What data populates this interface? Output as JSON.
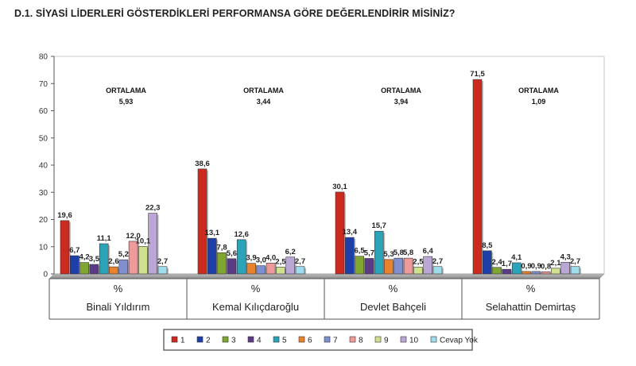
{
  "title": "D.1. SİYASİ LİDERLERİ GÖSTERDİKLERİ PERFORMANSA GÖRE DEĞERLENDİRİR MİSİNİZ?",
  "colors": [
    "#cc2a1f",
    "#1f3fa8",
    "#7fa631",
    "#5b3b86",
    "#2ba3b8",
    "#e8822d",
    "#7f8fd0",
    "#ef9a9a",
    "#cfe08f",
    "#bba7d6",
    "#9fdcec"
  ],
  "chart_data": {
    "type": "bar",
    "title": "D.1. SİYASİ LİDERLERİ GÖSTERDİKLERİ PERFORMANSA GÖRE DEĞERLENDİRİR MİSİNİZ?",
    "ylim": [
      0,
      80
    ],
    "yticks": [
      0,
      10,
      20,
      30,
      40,
      50,
      60,
      70,
      80
    ],
    "grid": false,
    "legend_position": "bottom",
    "unit_label": "%",
    "categories": [
      "Binali Yıldırım",
      "Kemal Kılıçdaroğlu",
      "Devlet Bahçeli",
      "Selahattin Demirtaş"
    ],
    "series": [
      {
        "name": "1",
        "values": [
          19.6,
          38.6,
          30.1,
          71.5
        ],
        "labels": [
          "19,6",
          "38,6",
          "30,1",
          "71,5"
        ]
      },
      {
        "name": "2",
        "values": [
          6.7,
          13.1,
          13.4,
          8.5
        ],
        "labels": [
          "6,7",
          "13,1",
          "13,4",
          "8,5"
        ]
      },
      {
        "name": "3",
        "values": [
          4.2,
          7.8,
          6.5,
          2.4
        ],
        "labels": [
          "4,2",
          "7,8",
          "6,5",
          "2,4"
        ]
      },
      {
        "name": "4",
        "values": [
          3.5,
          5.6,
          5.7,
          1.7
        ],
        "labels": [
          "3,5",
          "5,6",
          "5,7",
          "1,7"
        ]
      },
      {
        "name": "5",
        "values": [
          11.1,
          12.6,
          15.7,
          4.1
        ],
        "labels": [
          "11,1",
          "12,6",
          "15,7",
          "4,1"
        ]
      },
      {
        "name": "6",
        "values": [
          2.6,
          3.9,
          5.3,
          0.9
        ],
        "labels": [
          "2,6",
          "3,9",
          "5,3",
          "0,9"
        ]
      },
      {
        "name": "7",
        "values": [
          5.2,
          3.0,
          5.8,
          0.9
        ],
        "labels": [
          "5,2",
          "3,0",
          "5,8",
          "0,9"
        ]
      },
      {
        "name": "8",
        "values": [
          12.0,
          4.0,
          5.8,
          0.8
        ],
        "labels": [
          "12,0",
          "4,0",
          "5,8",
          "0,8"
        ]
      },
      {
        "name": "9",
        "values": [
          10.1,
          2.5,
          2.5,
          2.1
        ],
        "labels": [
          "10,1",
          "2,5",
          "2,5",
          "2,1"
        ]
      },
      {
        "name": "10",
        "values": [
          22.3,
          6.2,
          6.4,
          4.3
        ],
        "labels": [
          "22,3",
          "6,2",
          "6,4",
          "4,3"
        ]
      },
      {
        "name": "Cevap Yok",
        "values": [
          2.7,
          2.7,
          2.7,
          2.7
        ],
        "labels": [
          "2,7",
          "2,7",
          "2,7",
          "2,7"
        ]
      }
    ],
    "annotations": [
      {
        "label": "ORTALAMA",
        "value": "5,93"
      },
      {
        "label": "ORTALAMA",
        "value": "3,44"
      },
      {
        "label": "ORTALAMA",
        "value": "3,94"
      },
      {
        "label": "ORTALAMA",
        "value": "1,09"
      }
    ]
  }
}
